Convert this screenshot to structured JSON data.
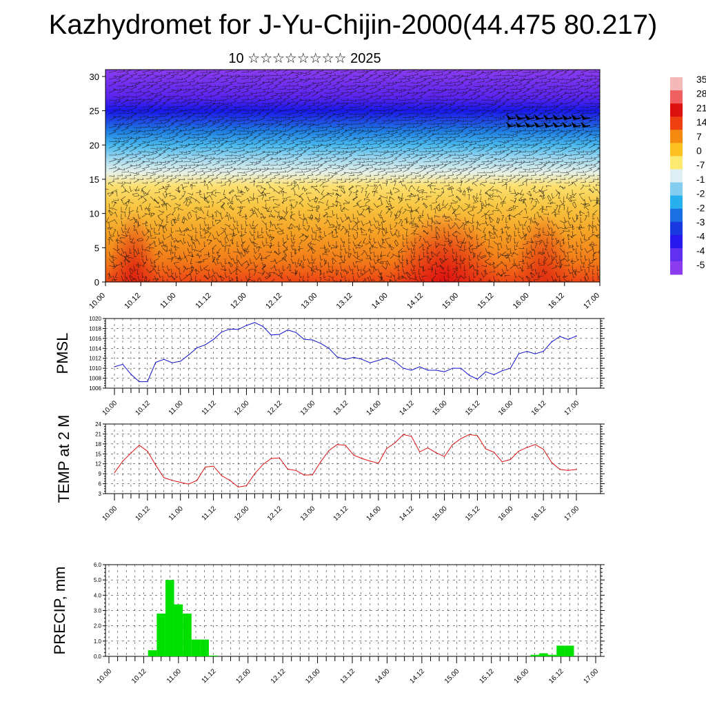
{
  "title": "Kazhydromet for J-Yu-Chijin-2000(44.475 80.217)",
  "subtitle": "10 ☆☆☆☆☆☆☆☆ 2025",
  "colors": {
    "pmsl_line": "#1010d0",
    "temp_line": "#dd1010",
    "precip_bar": "#00e000",
    "wind_barb": "#111111"
  },
  "chart_data": [
    {
      "id": "cross-section",
      "type": "heatmap",
      "ylim": [
        0,
        31
      ],
      "yticks": [
        "0",
        "5",
        "10",
        "15",
        "20",
        "25",
        "30"
      ],
      "xticks": [
        "10.00",
        "10.12",
        "11.00",
        "11.12",
        "12.00",
        "12.12",
        "13.00",
        "13.12",
        "14.00",
        "14.12",
        "15.00",
        "15.12",
        "16.00",
        "16.12",
        "17.00"
      ],
      "colorbar_labels": [
        "35",
        "28",
        "21",
        "14",
        "7",
        "0",
        "-7",
        "-1",
        "-2",
        "-2",
        "-3",
        "-4",
        "-4",
        "-5"
      ],
      "colorbar_colors": [
        "#f4b8b8",
        "#f06060",
        "#dd1010",
        "#ee4010",
        "#f58a10",
        "#fcc020",
        "#fdea70",
        "#dff0f4",
        "#82cdf0",
        "#28b0ee",
        "#1a70e0",
        "#1838e0",
        "#2818f0",
        "#6030ee",
        "#8a3cee"
      ],
      "field_stops": [
        {
          "z": 0,
          "c": "#ee4515"
        },
        {
          "z": 3,
          "c": "#f27a18"
        },
        {
          "z": 7,
          "c": "#f5a024"
        },
        {
          "z": 11,
          "c": "#f8c540"
        },
        {
          "z": 14,
          "c": "#fce070"
        },
        {
          "z": 16,
          "c": "#e6f0e8"
        },
        {
          "z": 18,
          "c": "#a2d9f0"
        },
        {
          "z": 20,
          "c": "#48b8ee"
        },
        {
          "z": 22,
          "c": "#1f7ee2"
        },
        {
          "z": 24,
          "c": "#1f38e6"
        },
        {
          "z": 25,
          "c": "#1818ea"
        },
        {
          "z": 27,
          "c": "#5a24ee"
        },
        {
          "z": 31,
          "c": "#8a3cee"
        }
      ],
      "hot_spots": [
        {
          "x": 4.8,
          "z": 0,
          "c": "#dd1010",
          "r": 0.55
        },
        {
          "x": 0.4,
          "z": 0,
          "c": "#dd2010",
          "r": 0.25
        },
        {
          "x": 6.2,
          "z": 0,
          "c": "#e03010",
          "r": 0.3
        }
      ]
    },
    {
      "id": "pmsl",
      "type": "line",
      "ylabel": "PMSL",
      "ylim": [
        1006,
        1020
      ],
      "yticks": [
        "1006",
        "1008",
        "1010",
        "1012",
        "1014",
        "1016",
        "1018",
        "1020"
      ],
      "xticks": [
        "10.00",
        "10.12",
        "11.00",
        "11.12",
        "12.00",
        "12.12",
        "13.00",
        "13.12",
        "14.00",
        "14.12",
        "15.00",
        "15.12",
        "16.00",
        "16.12",
        "17.00"
      ],
      "x_step_days": 0.125,
      "values": [
        1010.3,
        1010.8,
        1008.8,
        1007.3,
        1007.3,
        1011.2,
        1011.8,
        1011.1,
        1011.4,
        1012.7,
        1014.1,
        1014.7,
        1015.8,
        1017.3,
        1017.9,
        1017.8,
        1018.6,
        1019.2,
        1018.4,
        1016.7,
        1016.8,
        1017.7,
        1017.2,
        1015.8,
        1015.7,
        1015.0,
        1014.0,
        1012.3,
        1011.8,
        1012.2,
        1011.8,
        1011.1,
        1011.6,
        1012.1,
        1011.4,
        1010.0,
        1009.6,
        1010.3,
        1009.6,
        1009.6,
        1009.3,
        1010.0,
        1010.0,
        1008.6,
        1007.8,
        1009.3,
        1008.7,
        1009.5,
        1010.0,
        1012.9,
        1013.4,
        1012.9,
        1013.4,
        1015.3,
        1016.4,
        1015.8,
        1016.5
      ]
    },
    {
      "id": "temp",
      "type": "line",
      "ylabel": "TEMP at 2 M",
      "ylim": [
        3,
        24
      ],
      "yticks": [
        "3",
        "6",
        "9",
        "12",
        "15",
        "18",
        "21",
        "24"
      ],
      "xticks": [
        "10.00",
        "10.12",
        "11.00",
        "11.12",
        "12.00",
        "12.12",
        "13.00",
        "13.12",
        "14.00",
        "14.12",
        "15.00",
        "15.12",
        "16.00",
        "16.12",
        "17.00"
      ],
      "x_step_days": 0.125,
      "values": [
        9.3,
        12.8,
        15.2,
        17.6,
        15.8,
        11.6,
        7.8,
        7.0,
        6.4,
        5.9,
        7.0,
        11.0,
        11.3,
        8.4,
        7.0,
        5.0,
        5.4,
        9.0,
        11.8,
        13.6,
        13.8,
        10.4,
        10.0,
        8.6,
        8.7,
        12.6,
        16.0,
        17.8,
        17.6,
        14.6,
        13.6,
        12.8,
        12.2,
        16.6,
        18.3,
        20.8,
        20.3,
        15.6,
        16.8,
        15.3,
        14.2,
        17.8,
        19.6,
        20.8,
        20.5,
        16.5,
        15.5,
        12.6,
        13.3,
        15.8,
        16.9,
        17.8,
        16.4,
        12.4,
        10.3,
        10.0,
        10.3
      ]
    },
    {
      "id": "precip",
      "type": "bar",
      "ylabel": "PRECIP, mm",
      "ylim": [
        0,
        6
      ],
      "yticks": [
        "0.0",
        "1.0",
        "2.0",
        "3.0",
        "4.0",
        "5.0",
        "6.0"
      ],
      "xticks": [
        "10.00",
        "10.12",
        "11.00",
        "11.12",
        "12.00",
        "12.12",
        "13.00",
        "13.12",
        "14.00",
        "14.12",
        "15.00",
        "15.12",
        "16.00",
        "16.12",
        "17.00"
      ],
      "x_step_days": 0.125,
      "values": [
        0,
        0,
        0,
        0,
        0,
        0.4,
        2.8,
        5.0,
        3.4,
        2.8,
        1.1,
        1.1,
        0.05,
        0,
        0,
        0,
        0,
        0,
        0,
        0,
        0,
        0,
        0,
        0,
        0,
        0,
        0,
        0,
        0,
        0,
        0,
        0,
        0,
        0,
        0,
        0,
        0,
        0,
        0,
        0,
        0,
        0,
        0,
        0,
        0,
        0,
        0,
        0,
        0,
        0.1,
        0.2,
        0.1,
        0.7,
        0.7,
        0,
        0,
        0
      ]
    }
  ]
}
